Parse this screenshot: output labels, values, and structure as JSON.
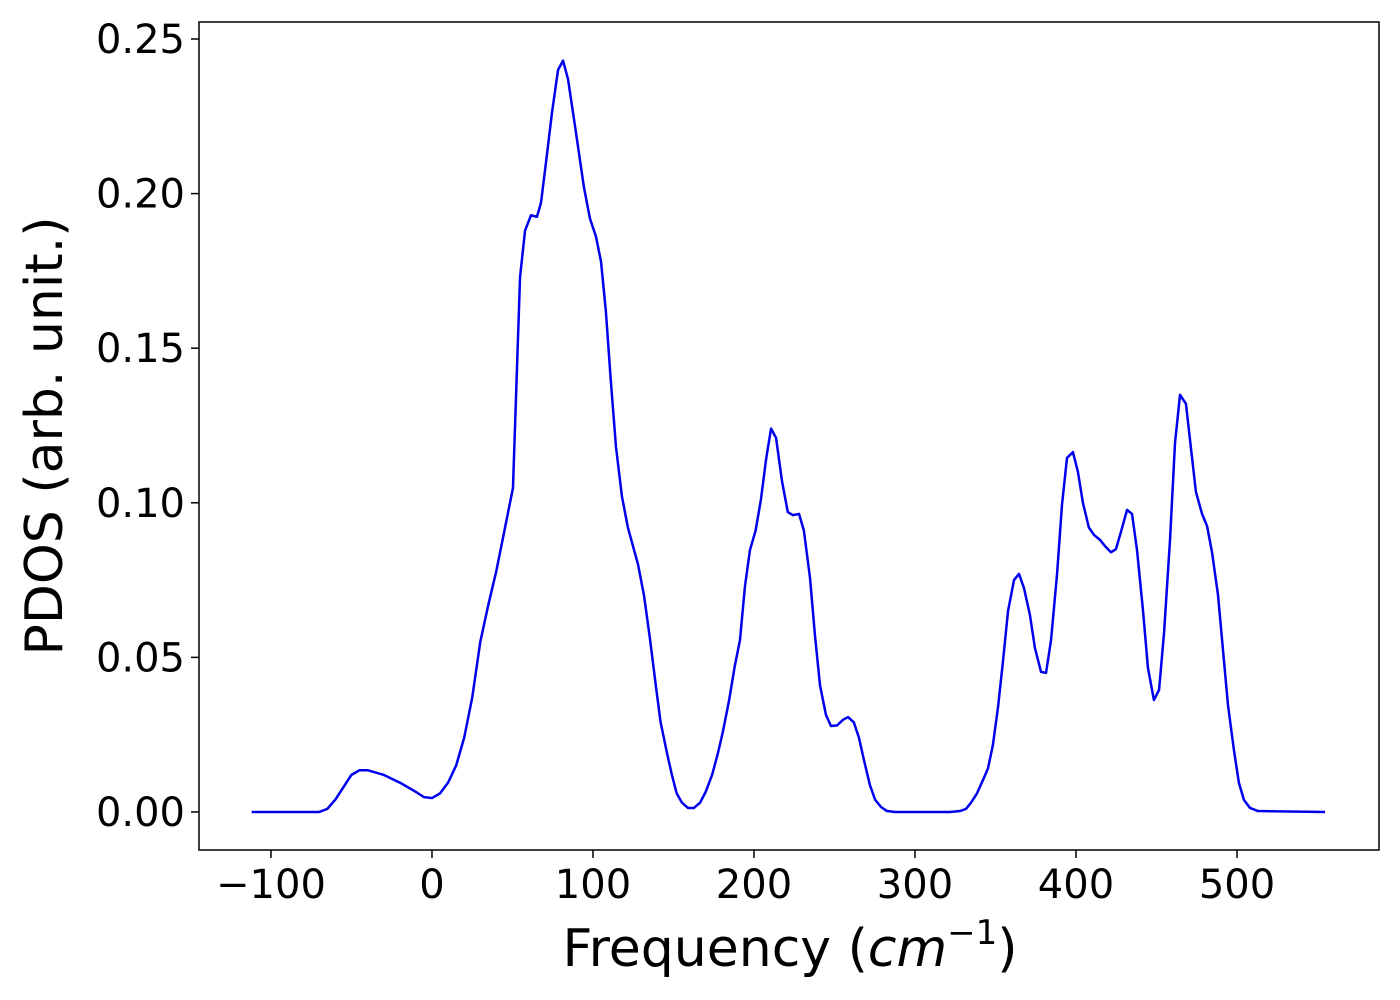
{
  "chart_data": {
    "type": "line",
    "xlabel": [
      "Frequency (",
      "cm",
      "−1",
      ")"
    ],
    "ylabel": "PDOS (arb. unit.)",
    "xlim": [
      -144.7,
      588.2
    ],
    "ylim": [
      -0.0123,
      0.2555
    ],
    "xticks": [
      {
        "value": -100,
        "label": "−100"
      },
      0,
      100,
      200,
      300,
      400,
      500
    ],
    "yticks": [
      {
        "value": 0,
        "label": "0.00"
      },
      {
        "value": 0.05,
        "label": "0.05"
      },
      {
        "value": 0.1,
        "label": "0.10"
      },
      {
        "value": 0.15,
        "label": "0.15"
      },
      {
        "value": 0.2,
        "label": "0.20"
      },
      {
        "value": 0.25,
        "label": "0.25"
      }
    ],
    "grid": false,
    "series": [
      {
        "name": "PDOS",
        "color": "#0000ee",
        "x": [
          -112,
          -70,
          -65,
          -60,
          -55,
          -50,
          -45,
          -40,
          -30,
          -20,
          -10,
          -5,
          0,
          5,
          10,
          15,
          20,
          25,
          30,
          35,
          40,
          45,
          50.3,
          54.7,
          57.8,
          61.5,
          65.2,
          67.7,
          70.8,
          74.5,
          78.3,
          81.4,
          84.5,
          88.8,
          94.4,
          98.1,
          101.9,
          105,
          108,
          111,
          114.3,
          118,
          121.7,
          128,
          131.7,
          135.4,
          139,
          142,
          146,
          149,
          152,
          155.3,
          159,
          162.7,
          166.5,
          170,
          174,
          177.6,
          180.7,
          184.5,
          188,
          191.3,
          194.4,
          197.5,
          201,
          204.3,
          207.5,
          210.6,
          213.7,
          217.4,
          221,
          224.2,
          228,
          231,
          234.8,
          237.9,
          241,
          244.7,
          247.8,
          251.6,
          255.3,
          258.4,
          262,
          265.2,
          268.3,
          272,
          275.2,
          278.9,
          282.6,
          287.6,
          321.7,
          328,
          331.7,
          334.8,
          338.5,
          342.2,
          345.3,
          348.4,
          351.6,
          354.7,
          357.8,
          361.5,
          364.6,
          367.7,
          371.4,
          374.5,
          378.3,
          381.4,
          384.5,
          388.2,
          391.3,
          394.4,
          398.1,
          401.2,
          404.3,
          408,
          411.2,
          414.9,
          418,
          421.7,
          424.8,
          427.9,
          431.7,
          434.8,
          437.9,
          441.6,
          444.7,
          448.4,
          451.6,
          454.7,
          458.4,
          461.5,
          464.6,
          468.3,
          471.4,
          474.5,
          478.3,
          481.4,
          484.5,
          488.2,
          491.3,
          494.4,
          498.1,
          501.2,
          504.3,
          508.1,
          513,
          554.7
        ],
        "values": [
          0,
          0,
          0.001,
          0.004,
          0.008,
          0.012,
          0.0135,
          0.0135,
          0.012,
          0.0095,
          0.0065,
          0.0048,
          0.0045,
          0.006,
          0.0095,
          0.015,
          0.024,
          0.037,
          0.055,
          0.067,
          0.078,
          0.091,
          0.1048,
          0.173,
          0.188,
          0.193,
          0.1925,
          0.197,
          0.21,
          0.226,
          0.24,
          0.243,
          0.237,
          0.222,
          0.202,
          0.192,
          0.186,
          0.178,
          0.162,
          0.14,
          0.118,
          0.102,
          0.092,
          0.08,
          0.07,
          0.056,
          0.041,
          0.029,
          0.019,
          0.012,
          0.006,
          0.003,
          0.0013,
          0.0013,
          0.003,
          0.0065,
          0.012,
          0.019,
          0.026,
          0.036,
          0.047,
          0.0556,
          0.073,
          0.0847,
          0.091,
          0.101,
          0.114,
          0.124,
          0.121,
          0.107,
          0.097,
          0.096,
          0.0964,
          0.091,
          0.0757,
          0.057,
          0.041,
          0.0314,
          0.0278,
          0.028,
          0.0298,
          0.0307,
          0.029,
          0.024,
          0.0168,
          0.0087,
          0.004,
          0.0016,
          0.0003,
          0,
          0,
          0.0003,
          0.001,
          0.003,
          0.006,
          0.0103,
          0.014,
          0.0217,
          0.034,
          0.049,
          0.065,
          0.075,
          0.077,
          0.0724,
          0.0637,
          0.053,
          0.0453,
          0.045,
          0.0556,
          0.0767,
          0.0993,
          0.1145,
          0.1164,
          0.11,
          0.1,
          0.092,
          0.0896,
          0.088,
          0.086,
          0.084,
          0.085,
          0.0905,
          0.0977,
          0.0964,
          0.0847,
          0.0653,
          0.0466,
          0.0362,
          0.0395,
          0.058,
          0.088,
          0.1193,
          0.1349,
          0.132,
          0.1177,
          0.1035,
          0.0964,
          0.0925,
          0.084,
          0.0702,
          0.0524,
          0.0346,
          0.02,
          0.0094,
          0.0039,
          0.0013,
          0.0003,
          0
        ]
      }
    ]
  }
}
